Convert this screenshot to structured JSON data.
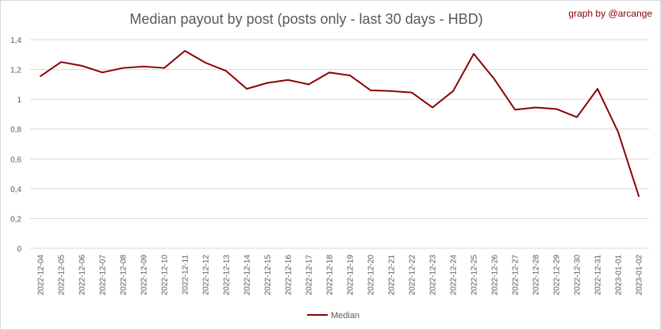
{
  "colors": {
    "series": "#8b0000",
    "grid": "#d9d9d9",
    "text": "#595959",
    "credit": "#8b0000"
  },
  "chart_data": {
    "type": "line",
    "title": "Median payout by post (posts only - last 30 days - HBD)",
    "credit": "graph by @arcange",
    "xlabel": "",
    "ylabel": "",
    "ylim": [
      0,
      1.4
    ],
    "yticks": [
      0,
      0.2,
      0.4,
      0.6,
      0.8,
      1,
      1.2,
      1.4
    ],
    "ytick_labels": [
      "0",
      "0,2",
      "0,4",
      "0,6",
      "0,8",
      "1",
      "1,2",
      "1,4"
    ],
    "grid": true,
    "legend_position": "bottom",
    "categories": [
      "2022-12-04",
      "2022-12-05",
      "2022-12-06",
      "2022-12-07",
      "2022-12-08",
      "2022-12-09",
      "2022-12-10",
      "2022-12-11",
      "2022-12-12",
      "2022-12-13",
      "2022-12-14",
      "2022-12-15",
      "2022-12-16",
      "2022-12-17",
      "2022-12-18",
      "2022-12-19",
      "2022-12-20",
      "2022-12-21",
      "2022-12-22",
      "2022-12-23",
      "2022-12-24",
      "2022-12-25",
      "2022-12-26",
      "2022-12-27",
      "2022-12-28",
      "2022-12-29",
      "2022-12-30",
      "2022-12-31",
      "2023-01-01",
      "2023-01-02"
    ],
    "series": [
      {
        "name": "Median",
        "values": [
          1.155,
          1.25,
          1.225,
          1.18,
          1.21,
          1.22,
          1.21,
          1.325,
          1.245,
          1.19,
          1.07,
          1.11,
          1.13,
          1.1,
          1.18,
          1.16,
          1.06,
          1.055,
          1.045,
          0.945,
          1.055,
          1.305,
          1.135,
          0.93,
          0.945,
          0.935,
          0.88,
          1.07,
          0.78,
          0.35
        ]
      }
    ]
  }
}
